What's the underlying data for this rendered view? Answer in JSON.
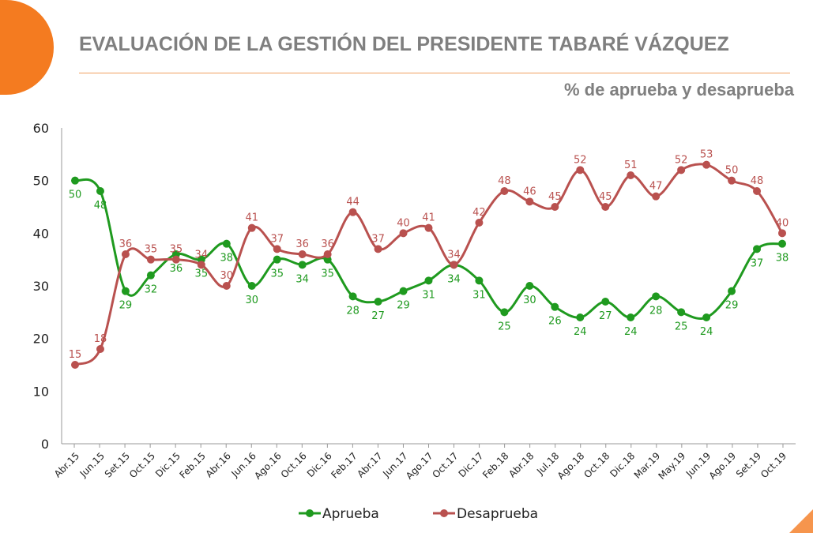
{
  "header": {
    "title": "EVALUACIÓN DE LA GESTIÓN DEL PRESIDENTE TABARÉ VÁZQUEZ",
    "subtitle": "% de aprueba y desaprueba"
  },
  "chart_data": {
    "type": "line",
    "title": "EVALUACIÓN DE LA GESTIÓN DEL PRESIDENTE TABARÉ VÁZQUEZ",
    "subtitle": "% de aprueba y desaprueba",
    "xlabel": "",
    "ylabel": "",
    "ylim": [
      0,
      60
    ],
    "yticks": [
      0,
      10,
      20,
      30,
      40,
      50,
      60
    ],
    "legend_position": "bottom",
    "categories": [
      "Abr.15",
      "Jun.15",
      "Set.15",
      "Oct.15",
      "Dic.15",
      "Feb.15",
      "Abr.16",
      "Jun.16",
      "Ago.16",
      "Oct.16",
      "Dic.16",
      "Feb.17",
      "Abr.17",
      "Jun.17",
      "Ago.17",
      "Oct.17",
      "Dic.17",
      "Feb.18",
      "Abr.18",
      "Jul.18",
      "Ago.18",
      "Oct.18",
      "Dic.18",
      "Mar.19",
      "May.19",
      "Jun.19",
      "Ago.19",
      "Set.19",
      "Oct.19"
    ],
    "series": [
      {
        "name": "Aprueba",
        "color": "#1f9a1f",
        "label_pos": "below",
        "values": [
          50,
          48,
          29,
          32,
          36,
          35,
          38,
          30,
          35,
          34,
          35,
          28,
          27,
          29,
          31,
          34,
          31,
          25,
          30,
          26,
          24,
          27,
          24,
          28,
          25,
          24,
          29,
          37,
          38
        ]
      },
      {
        "name": "Desaprueba",
        "color": "#b9514f",
        "label_pos": "above",
        "values": [
          15,
          18,
          36,
          35,
          35,
          34,
          30,
          41,
          37,
          36,
          36,
          44,
          37,
          40,
          41,
          34,
          42,
          48,
          46,
          45,
          52,
          45,
          51,
          47,
          52,
          53,
          50,
          48,
          40
        ]
      }
    ]
  }
}
